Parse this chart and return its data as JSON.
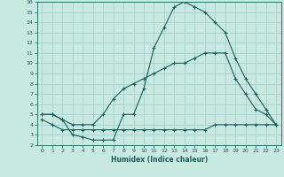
{
  "xlabel": "Humidex (Indice chaleur)",
  "xlim": [
    -0.5,
    23.5
  ],
  "ylim": [
    2,
    16
  ],
  "xticks": [
    0,
    1,
    2,
    3,
    4,
    5,
    6,
    7,
    8,
    9,
    10,
    11,
    12,
    13,
    14,
    15,
    16,
    17,
    18,
    19,
    20,
    21,
    22,
    23
  ],
  "yticks": [
    2,
    3,
    4,
    5,
    6,
    7,
    8,
    9,
    10,
    11,
    12,
    13,
    14,
    15,
    16
  ],
  "bg_color": "#c8e8e0",
  "line_color": "#1a6060",
  "grid_color": "#9ecfca",
  "line1_x": [
    0,
    1,
    2,
    3,
    4,
    5,
    6,
    7,
    8,
    9,
    10,
    11,
    12,
    13,
    14,
    15,
    16,
    17,
    18,
    19,
    20,
    21,
    22,
    23
  ],
  "line1_y": [
    5.0,
    5.0,
    4.5,
    3.0,
    2.8,
    2.5,
    2.5,
    2.5,
    5.0,
    5.0,
    7.5,
    11.5,
    13.5,
    15.5,
    16.0,
    15.5,
    15.0,
    14.0,
    13.0,
    10.5,
    8.5,
    7.0,
    5.5,
    4.0
  ],
  "line2_x": [
    0,
    1,
    2,
    3,
    4,
    5,
    6,
    7,
    8,
    9,
    10,
    11,
    12,
    13,
    14,
    15,
    16,
    17,
    18,
    19,
    20,
    21,
    22,
    23
  ],
  "line2_y": [
    5.0,
    5.0,
    4.5,
    4.0,
    4.0,
    4.0,
    5.0,
    6.5,
    7.5,
    8.0,
    8.5,
    9.0,
    9.5,
    10.0,
    10.0,
    10.5,
    11.0,
    11.0,
    11.0,
    8.5,
    7.0,
    5.5,
    5.0,
    4.0
  ],
  "line3_x": [
    0,
    1,
    2,
    3,
    4,
    5,
    6,
    7,
    8,
    9,
    10,
    11,
    12,
    13,
    14,
    15,
    16,
    17,
    18,
    19,
    20,
    21,
    22,
    23
  ],
  "line3_y": [
    4.5,
    4.0,
    3.5,
    3.5,
    3.5,
    3.5,
    3.5,
    3.5,
    3.5,
    3.5,
    3.5,
    3.5,
    3.5,
    3.5,
    3.5,
    3.5,
    3.5,
    4.0,
    4.0,
    4.0,
    4.0,
    4.0,
    4.0,
    4.0
  ]
}
